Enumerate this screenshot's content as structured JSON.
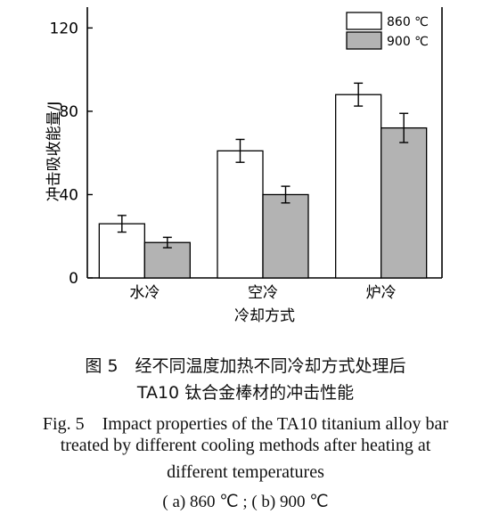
{
  "chart_data": {
    "type": "bar",
    "categories": [
      "水冷",
      "空冷",
      "炉冷"
    ],
    "xlabel": "冷却方式",
    "ylabel": "冲击吸收能量/J",
    "ylim": [
      0,
      130
    ],
    "yticks": [
      0,
      40,
      80,
      120
    ],
    "legend_position": "top-right",
    "series": [
      {
        "name": "860 ℃",
        "color": "#ffffff",
        "values": [
          26,
          61,
          88
        ],
        "errors": [
          4,
          5.5,
          5.5
        ]
      },
      {
        "name": "900 ℃",
        "color": "#b3b3b3",
        "values": [
          17,
          40,
          72
        ],
        "errors": [
          2.5,
          4,
          7
        ]
      }
    ]
  },
  "caption": {
    "zh_line1": "图 5　经不同温度加热不同冷却方式处理后",
    "zh_line2": "TA10 钛合金棒材的冲击性能",
    "en_line1": "Fig. 5　Impact properties of the TA10 titanium alloy bar",
    "en_line2": "treated by different cooling methods after heating at",
    "en_line3": "different temperatures",
    "sub": "( a) 860 ℃ ; ( b) 900 ℃"
  }
}
